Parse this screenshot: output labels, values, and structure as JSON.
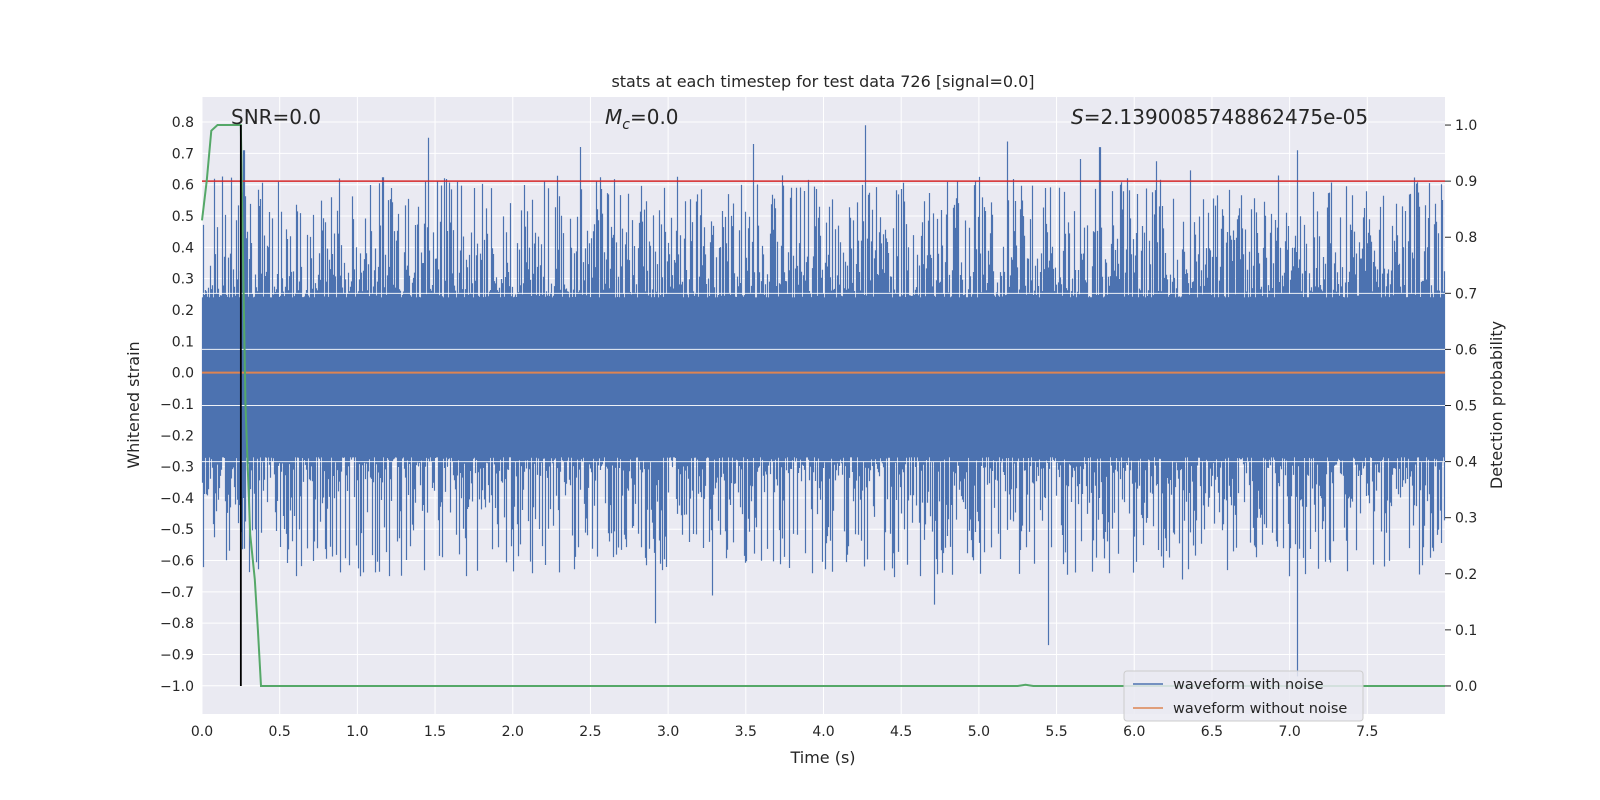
{
  "chart_data": {
    "type": "line",
    "title": "stats at each timestep for test data 726 [signal=0.0]",
    "xlabel": "Time (s)",
    "ylabel": "Whitened strain",
    "y2label": "Detection probability",
    "xlim": [
      0.0,
      8.0
    ],
    "ylim": [
      -1.09,
      0.88
    ],
    "y2lim": [
      -0.05,
      1.05
    ],
    "xticks": [
      "0.0",
      "0.5",
      "1.0",
      "1.5",
      "2.0",
      "2.5",
      "3.0",
      "3.5",
      "4.0",
      "4.5",
      "5.0",
      "5.5",
      "6.0",
      "6.5",
      "7.0",
      "7.5"
    ],
    "yticks": [
      "0.8",
      "0.7",
      "0.6",
      "0.5",
      "0.4",
      "0.3",
      "0.2",
      "0.1",
      "0.0",
      "−0.1",
      "−0.2",
      "−0.3",
      "−0.4",
      "−0.5",
      "−0.6",
      "−0.7",
      "−0.8",
      "−0.9",
      "−1.0"
    ],
    "y2ticks": [
      "1.0",
      "0.9",
      "0.8",
      "0.7",
      "0.6",
      "0.5",
      "0.4",
      "0.3",
      "0.2",
      "0.1",
      "0.0"
    ],
    "annotations": {
      "snr": "SNR=0.0",
      "mc_symbol": "M",
      "mc_sub": "c",
      "mc_value": "=0.0",
      "s_symbol": "S",
      "s_value": "=2.1390085748862475e-05"
    },
    "threshold": {
      "name": "detection threshold",
      "value": 0.9,
      "color": "#d62728"
    },
    "marker_time": 0.25,
    "series": [
      {
        "name": "waveform with noise",
        "color": "#4c72b0",
        "noise_envelope": {
          "typical_max": 0.45,
          "typical_min": -0.45,
          "peak_max": 0.79,
          "peak_min": -0.97
        },
        "notable_peaks": [
          {
            "t": 0.27,
            "v": 0.71
          },
          {
            "t": 1.46,
            "v": 0.75
          },
          {
            "t": 3.55,
            "v": 0.73
          },
          {
            "t": 4.27,
            "v": 0.79
          },
          {
            "t": 5.78,
            "v": 0.72
          },
          {
            "t": 7.05,
            "v": 0.71
          },
          {
            "t": 2.92,
            "v": -0.8
          },
          {
            "t": 5.45,
            "v": -0.87
          },
          {
            "t": 7.05,
            "v": -0.97
          }
        ]
      },
      {
        "name": "waveform without noise",
        "color": "#dd8452",
        "value": 0.0
      },
      {
        "name": "detection probability",
        "color": "#55a868",
        "axis": "right",
        "x": [
          0.0,
          0.03,
          0.06,
          0.1,
          0.15,
          0.25,
          0.28,
          0.31,
          0.34,
          0.36,
          0.38,
          0.4,
          1.0,
          5.0,
          5.25,
          5.3,
          5.35,
          6.0,
          8.0
        ],
        "y": [
          0.83,
          0.9,
          0.99,
          1.0,
          1.0,
          1.0,
          0.5,
          0.27,
          0.19,
          0.1,
          0.0,
          0.0,
          0.0,
          0.0,
          0.0,
          0.002,
          0.0,
          0.0,
          0.0
        ]
      }
    ],
    "legend": {
      "location": "lower right",
      "entries": [
        {
          "label": "waveform with noise",
          "color": "#4c72b0"
        },
        {
          "label": "waveform without noise",
          "color": "#dd8452"
        }
      ]
    },
    "style": {
      "plot_background": "#eaeaf2",
      "grid_color": "#ffffff",
      "grid": true
    }
  }
}
